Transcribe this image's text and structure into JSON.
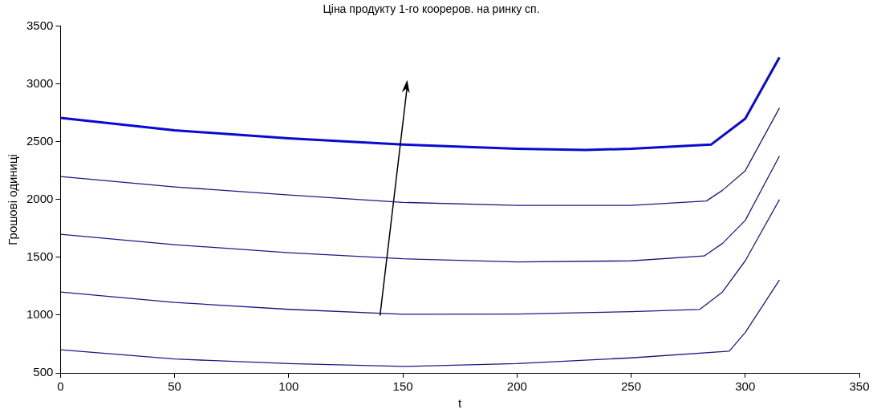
{
  "chart_data": {
    "type": "line",
    "title": "Ціна продукту 1-го коореров. на ринку сп.",
    "xlabel": "t",
    "ylabel": "Грошові одиниці",
    "xlim": [
      0,
      350
    ],
    "xticks": [
      0,
      50,
      100,
      150,
      200,
      250,
      300,
      350
    ],
    "ylim": [
      500,
      3500
    ],
    "yticks": [
      500,
      1000,
      1500,
      2000,
      2500,
      3000,
      3500
    ],
    "grid": false,
    "legend": false,
    "marker": "none",
    "line_style": "solid",
    "series": [
      {
        "color": "#1a1a80",
        "x": [
          0,
          50,
          100,
          150,
          200,
          250,
          293,
          300,
          315
        ],
        "values": [
          700,
          620,
          580,
          556,
          580,
          630,
          688,
          850,
          1305
        ]
      },
      {
        "color": "#1a1a80",
        "x": [
          0,
          50,
          100,
          150,
          200,
          250,
          280,
          290,
          300,
          315
        ],
        "values": [
          1200,
          1110,
          1050,
          1007,
          1010,
          1030,
          1049,
          1200,
          1470,
          2000
        ]
      },
      {
        "color": "#1a1a80",
        "x": [
          0,
          50,
          100,
          150,
          200,
          250,
          282,
          290,
          300,
          315
        ],
        "values": [
          1700,
          1610,
          1540,
          1488,
          1460,
          1470,
          1512,
          1620,
          1820,
          2378
        ]
      },
      {
        "color": "#1a1a80",
        "x": [
          0,
          50,
          100,
          150,
          200,
          250,
          283,
          290,
          300,
          315
        ],
        "values": [
          2200,
          2110,
          2040,
          1976,
          1950,
          1950,
          1988,
          2080,
          2250,
          2793
        ]
      },
      {
        "color": "#0a0ad0",
        "x": [
          0,
          50,
          100,
          150,
          200,
          230,
          250,
          285,
          300,
          315
        ],
        "values": [
          2707,
          2600,
          2530,
          2476,
          2440,
          2430,
          2440,
          2476,
          2700,
          3232
        ]
      }
    ]
  }
}
